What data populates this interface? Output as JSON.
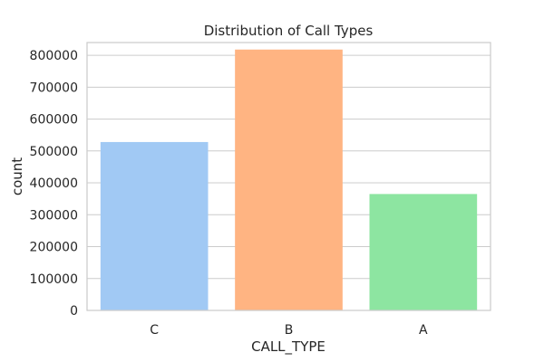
{
  "chart_data": {
    "type": "bar",
    "title": "Distribution of Call Types",
    "xlabel": "CALL_TYPE",
    "ylabel": "count",
    "categories": [
      "C",
      "B",
      "A"
    ],
    "values": [
      528000,
      818000,
      365000
    ],
    "colors": [
      "#a1c9f4",
      "#ffb482",
      "#8de5a1"
    ],
    "ylim": [
      0,
      840000
    ],
    "yticks": [
      0,
      100000,
      200000,
      300000,
      400000,
      500000,
      600000,
      700000,
      800000
    ],
    "grid": true,
    "legend": "none"
  }
}
